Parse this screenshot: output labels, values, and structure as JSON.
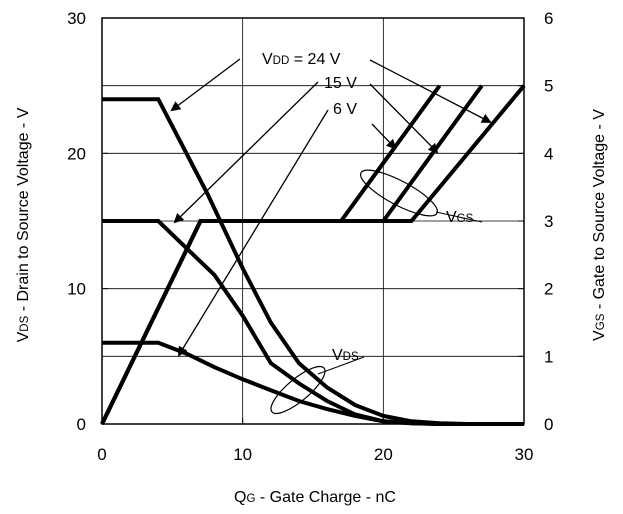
{
  "chart_data": {
    "type": "line",
    "xlabel": "QG - Gate Charge - nC",
    "ylabel_left": "VDS - Drain to Source Voltage - V",
    "ylabel_right": "VGS - Gate to Source Voltage - V",
    "xlim": [
      0,
      30
    ],
    "ylim_left": [
      0,
      30
    ],
    "ylim_right": [
      0,
      6
    ],
    "xticks": [
      "0",
      "10",
      "20",
      "30"
    ],
    "yticks_left": [
      "0",
      "10",
      "20",
      "30"
    ],
    "yticks_right": [
      "0",
      "1",
      "2",
      "3",
      "4",
      "5",
      "6"
    ],
    "grid": true,
    "annotations": {
      "vdd_label": "VDD = 24 V",
      "v15_label": "15 V",
      "v6_label": "6 V",
      "vgs_label": "VGS",
      "vds_label": "VDS"
    },
    "vds_series": [
      {
        "name": "VDD = 24 V",
        "x": [
          0,
          4,
          5.5,
          7.5,
          10,
          12,
          14,
          16,
          18,
          20,
          22,
          24,
          26,
          30
        ],
        "y": [
          24,
          24,
          21,
          17,
          11.5,
          7.5,
          4.5,
          2.7,
          1.4,
          0.6,
          0.2,
          0.05,
          0,
          0
        ]
      },
      {
        "name": "15 V",
        "x": [
          0,
          4,
          6,
          8,
          10,
          12,
          14,
          16,
          18,
          20,
          22,
          24,
          30
        ],
        "y": [
          15,
          15,
          13,
          11,
          8,
          4.5,
          3,
          1.7,
          0.7,
          0.2,
          0.05,
          0,
          0
        ]
      },
      {
        "name": "6 V",
        "x": [
          0,
          4,
          6,
          8,
          10,
          12,
          14,
          16,
          18,
          20,
          22,
          24,
          30
        ],
        "y": [
          6,
          6,
          5.2,
          4.2,
          3.3,
          2.5,
          1.7,
          1.1,
          0.6,
          0.2,
          0.05,
          0,
          0
        ]
      }
    ],
    "vgs_series": [
      {
        "name": "VDD = 24 V",
        "x": [
          0,
          7,
          22,
          30
        ],
        "y": [
          0,
          3,
          3,
          5
        ]
      },
      {
        "name": "15 V",
        "x": [
          0,
          7,
          20,
          27
        ],
        "y": [
          0,
          3,
          3,
          5
        ]
      },
      {
        "name": "6 V",
        "x": [
          0,
          7,
          17,
          24
        ],
        "y": [
          0,
          3,
          3,
          5
        ]
      }
    ]
  }
}
